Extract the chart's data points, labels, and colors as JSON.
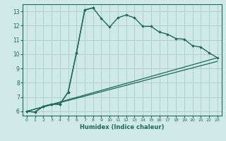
{
  "xlabel": "Humidex (Indice chaleur)",
  "bg_color": "#cfe8e8",
  "line_color": "#1a6b5a",
  "grid_color": "#b0d0d0",
  "xlim": [
    -0.5,
    23.5
  ],
  "ylim": [
    5.7,
    13.5
  ],
  "xticks": [
    0,
    1,
    2,
    3,
    4,
    5,
    6,
    7,
    8,
    9,
    10,
    11,
    12,
    13,
    14,
    15,
    16,
    17,
    18,
    19,
    20,
    21,
    22,
    23
  ],
  "yticks": [
    6,
    7,
    8,
    9,
    10,
    11,
    12,
    13
  ],
  "curve1_x": [
    0,
    1,
    2,
    3,
    4,
    5,
    6,
    7,
    8,
    9,
    10,
    11,
    12,
    13,
    14,
    15,
    16,
    17,
    18,
    19,
    20,
    21,
    22,
    23
  ],
  "curve1_y": [
    6.0,
    5.95,
    6.35,
    6.5,
    6.5,
    7.35,
    10.1,
    13.1,
    13.25,
    12.5,
    11.9,
    12.55,
    12.75,
    12.55,
    11.95,
    11.95,
    11.55,
    11.4,
    11.1,
    11.05,
    10.6,
    10.5,
    10.1,
    9.75
  ],
  "curve2_x": [
    0,
    1,
    2,
    3,
    4,
    5,
    6,
    7,
    8
  ],
  "curve2_y": [
    6.0,
    5.95,
    6.35,
    6.5,
    6.5,
    7.35,
    10.1,
    13.1,
    13.25
  ],
  "line3_x": [
    0,
    23
  ],
  "line3_y": [
    6.0,
    9.75
  ],
  "line4_x": [
    0,
    23
  ],
  "line4_y": [
    6.0,
    9.5
  ]
}
